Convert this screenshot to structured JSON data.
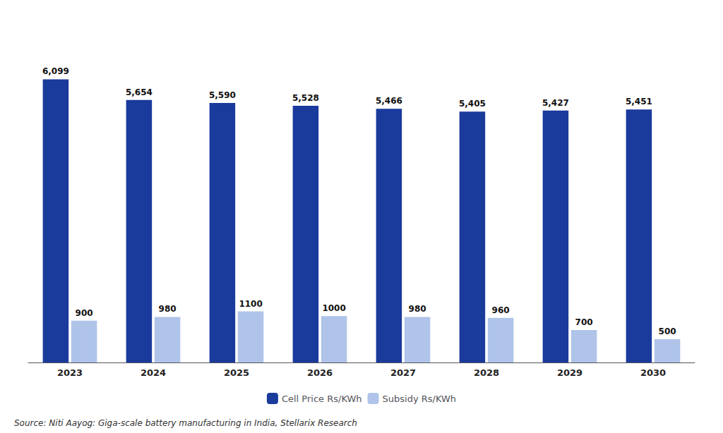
{
  "chart_data": {
    "type": "bar",
    "categories": [
      "2023",
      "2024",
      "2025",
      "2026",
      "2027",
      "2028",
      "2029",
      "2030"
    ],
    "series": [
      {
        "name": "Cell Price Rs/KWh",
        "color": "#1a3a9c",
        "values": [
          6099,
          5654,
          5590,
          5528,
          5466,
          5405,
          5427,
          5451
        ],
        "value_labels": [
          "6,099",
          "5,654",
          "5,590",
          "5,528",
          "5,466",
          "5,405",
          "5,427",
          "5,451"
        ]
      },
      {
        "name": "Subsidy Rs/KWh",
        "color": "#afc4e8",
        "values": [
          900,
          980,
          1100,
          1000,
          980,
          960,
          700,
          500
        ]
      }
    ],
    "ylim": [
      0,
      7200
    ],
    "data_labels": true,
    "tick_labels": "x",
    "grid": false,
    "legend": "bottom",
    "annotations": [
      "Source: Niti Aayog: Giga-scale battery manufacturing in India, Stellarix Research"
    ]
  }
}
